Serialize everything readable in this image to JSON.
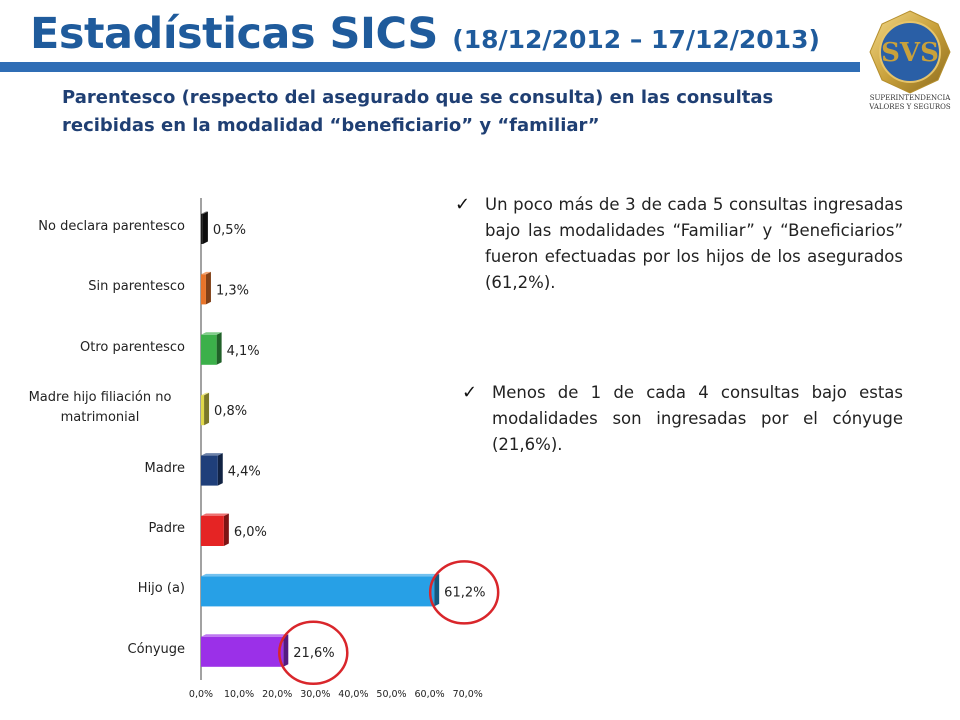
{
  "header": {
    "title": "Estadísticas SICS",
    "date_range": "(18/12/2012 – 17/12/2013)",
    "subtitle": "Parentesco (respecto del asegurado que se consulta) en las consultas recibidas en la modalidad “beneficiario” y “familiar”"
  },
  "logo": {
    "text": "SVS",
    "name_line1": "SUPERINTENDENCIA",
    "name_line2": "VALORES Y SEGUROS",
    "icon": "svs-logo-icon"
  },
  "chart_data": {
    "type": "bar",
    "orientation": "horizontal",
    "categories": [
      "No declara parentesco",
      "Sin parentesco",
      "Otro parentesco",
      "Madre hijo filiación no matrimonial",
      "Madre",
      "Padre",
      "Hijo (a)",
      "Cónyuge"
    ],
    "values": [
      0.5,
      1.3,
      4.1,
      0.8,
      4.4,
      6.0,
      61.2,
      21.6
    ],
    "value_labels": [
      "0,5%",
      "1,3%",
      "4,1%",
      "0,8%",
      "4,4%",
      "6,0%",
      "61,2%",
      "21,6%"
    ],
    "colors": [
      "#1a1a1a",
      "#e8742a",
      "#3cb04a",
      "#e0d84a",
      "#1f3f7a",
      "#e52424",
      "#27a0e6",
      "#9b30e8"
    ],
    "xlim": [
      0,
      70
    ],
    "x_ticks": [
      "0,0%",
      "10,0%",
      "20,0%",
      "30,0%",
      "40,0%",
      "50,0%",
      "60,0%",
      "70,0%"
    ],
    "highlighted": [
      "Hijo (a)",
      "Cónyuge"
    ],
    "highlight_color": "#d9262b",
    "grid": false,
    "legend": "none"
  },
  "notes": [
    {
      "text": "Un poco más de 3 de cada 5 consultas ingresadas bajo las modalidades “Familiar” y “Beneficiarios” fueron efectuadas por los hijos de los asegurados (61,2%).",
      "icon": "checkmark-icon"
    },
    {
      "text": "Menos de 1 de cada 4 consultas bajo estas modalidades son ingresadas por el cónyuge (21,6%).",
      "icon": "checkmark-icon"
    }
  ],
  "colors": {
    "title": "#1f5b9c",
    "title_bar": "#2f6db5",
    "subtitle": "#1f3f73",
    "logo_gold": "#c9a13b",
    "logo_blue": "#2a5fa6"
  }
}
